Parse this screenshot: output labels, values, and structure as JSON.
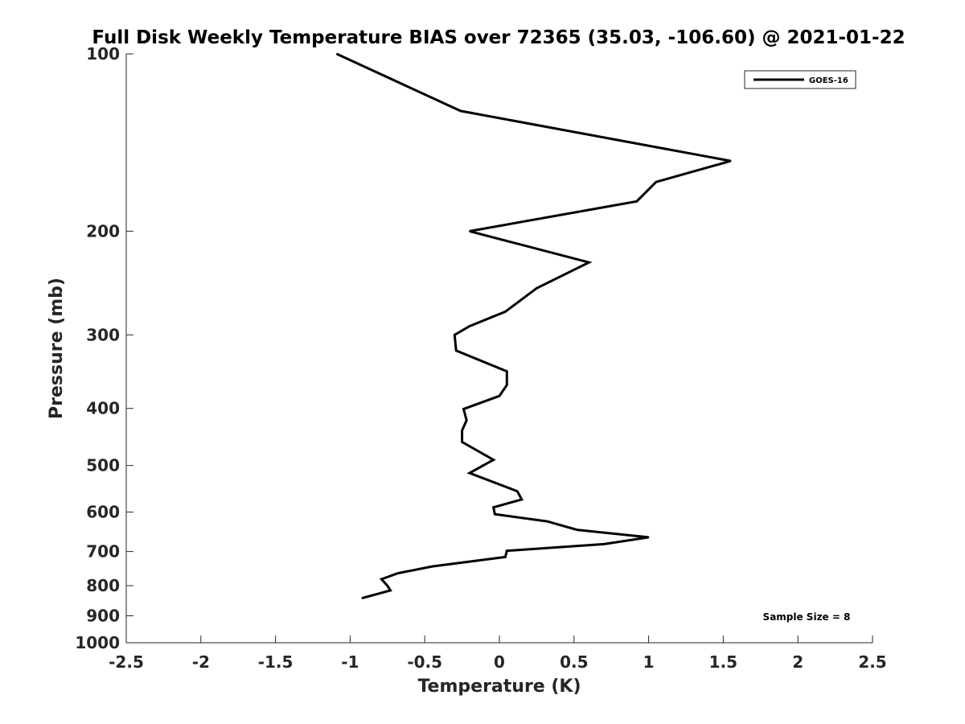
{
  "chart_data": {
    "type": "line",
    "title": "Full Disk Weekly Temperature BIAS over 72365 (35.03, -106.60) @ 2021-01-22",
    "xlabel": "Temperature (K)",
    "ylabel": "Pressure (mb)",
    "xlim": [
      -2.5,
      2.5
    ],
    "ylim": [
      100,
      1000
    ],
    "y_scale": "log",
    "y_reversed": true,
    "x_ticks": [
      -2.5,
      -2,
      -1.5,
      -1,
      -0.5,
      0,
      0.5,
      1,
      1.5,
      2,
      2.5
    ],
    "x_tick_labels": [
      "-2.5",
      "-2",
      "-1.5",
      "-1",
      "-0.5",
      "0",
      "0.5",
      "1",
      "1.5",
      "2",
      "2.5"
    ],
    "y_ticks": [
      100,
      200,
      300,
      400,
      500,
      600,
      700,
      800,
      900,
      1000
    ],
    "y_tick_labels": [
      "100",
      "200",
      "300",
      "400",
      "500",
      "600",
      "700",
      "800",
      "900",
      "1000"
    ],
    "grid": false,
    "legend_position": "top-right",
    "series": [
      {
        "name": "GOES-16",
        "color": "#000000",
        "points": [
          {
            "x": -1.09,
            "y": 100
          },
          {
            "x": -0.26,
            "y": 125
          },
          {
            "x": 1.55,
            "y": 152
          },
          {
            "x": 1.05,
            "y": 165
          },
          {
            "x": 0.92,
            "y": 178
          },
          {
            "x": -0.2,
            "y": 200
          },
          {
            "x": 0.6,
            "y": 226
          },
          {
            "x": 0.25,
            "y": 250
          },
          {
            "x": 0.04,
            "y": 274
          },
          {
            "x": -0.2,
            "y": 290
          },
          {
            "x": -0.3,
            "y": 300
          },
          {
            "x": -0.29,
            "y": 319
          },
          {
            "x": 0.05,
            "y": 346
          },
          {
            "x": 0.05,
            "y": 365
          },
          {
            "x": 0.0,
            "y": 381
          },
          {
            "x": -0.24,
            "y": 401
          },
          {
            "x": -0.22,
            "y": 419
          },
          {
            "x": -0.25,
            "y": 436
          },
          {
            "x": -0.25,
            "y": 456
          },
          {
            "x": -0.04,
            "y": 489
          },
          {
            "x": -0.2,
            "y": 515
          },
          {
            "x": 0.12,
            "y": 553
          },
          {
            "x": 0.15,
            "y": 571
          },
          {
            "x": -0.04,
            "y": 589
          },
          {
            "x": -0.03,
            "y": 605
          },
          {
            "x": 0.32,
            "y": 622
          },
          {
            "x": 0.52,
            "y": 643
          },
          {
            "x": 1.0,
            "y": 662
          },
          {
            "x": 0.7,
            "y": 680
          },
          {
            "x": 0.05,
            "y": 698
          },
          {
            "x": 0.04,
            "y": 715
          },
          {
            "x": -0.45,
            "y": 742
          },
          {
            "x": -0.68,
            "y": 762
          },
          {
            "x": -0.79,
            "y": 780
          },
          {
            "x": -0.75,
            "y": 800
          },
          {
            "x": -0.73,
            "y": 815
          },
          {
            "x": -0.92,
            "y": 840
          }
        ]
      }
    ],
    "annotations": [
      {
        "text": "Sample Size = 8"
      }
    ]
  }
}
